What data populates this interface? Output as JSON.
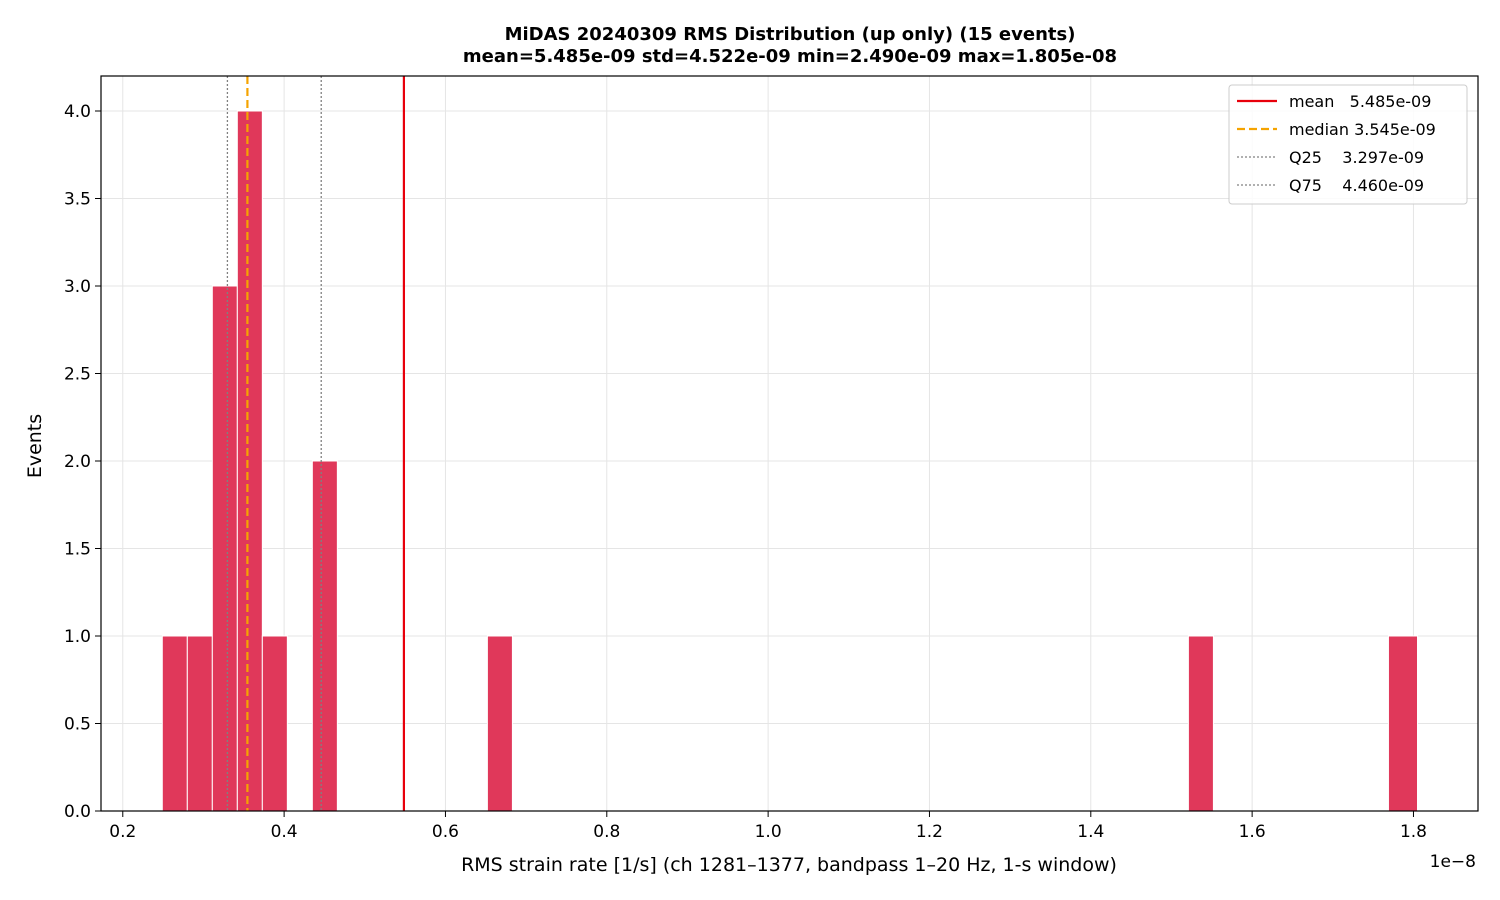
{
  "chart_data": {
    "type": "bar",
    "title": "MiDAS 20240309  RMS Distribution  (up only)  (15 events)",
    "subtitle": "mean=5.485e-09  std=4.522e-09  min=2.490e-09  max=1.805e-08",
    "xlabel": "RMS strain rate [1/s]  (ch 1281–1377, bandpass 1–20 Hz, 1-s window)",
    "ylabel": "Events",
    "x_offset_label": "1e−8",
    "x_scale": 1e-08,
    "xlim": [
      0.173,
      1.88
    ],
    "ylim": [
      0,
      4.2
    ],
    "grid": true,
    "bar_color": "#e0385a",
    "x_ticks": [
      0.2,
      0.4,
      0.6,
      0.8,
      1.0,
      1.2,
      1.4,
      1.6,
      1.8
    ],
    "y_ticks": [
      0.0,
      0.5,
      1.0,
      1.5,
      2.0,
      2.5,
      3.0,
      3.5,
      4.0
    ],
    "bins": [
      {
        "x0": 0.249,
        "x1": 0.28,
        "count": 1
      },
      {
        "x0": 0.28,
        "x1": 0.311,
        "count": 1
      },
      {
        "x0": 0.311,
        "x1": 0.342,
        "count": 3
      },
      {
        "x0": 0.342,
        "x1": 0.373,
        "count": 4
      },
      {
        "x0": 0.373,
        "x1": 0.404,
        "count": 1
      },
      {
        "x0": 0.435,
        "x1": 0.466,
        "count": 2
      },
      {
        "x0": 0.652,
        "x1": 0.683,
        "count": 1
      },
      {
        "x0": 1.521,
        "x1": 1.552,
        "count": 1
      },
      {
        "x0": 1.769,
        "x1": 1.805,
        "count": 1
      }
    ],
    "reference_lines": [
      {
        "key": "mean",
        "label": "mean   5.485e-09",
        "value": 0.5485,
        "color": "#e8000b",
        "style": "solid"
      },
      {
        "key": "median",
        "label": "median 3.545e-09",
        "value": 0.3545,
        "color": "#f5a300",
        "style": "dashed"
      },
      {
        "key": "q25",
        "label": "Q25    3.297e-09",
        "value": 0.3297,
        "color": "#808080",
        "style": "dotted"
      },
      {
        "key": "q75",
        "label": "Q75    4.460e-09",
        "value": 0.446,
        "color": "#808080",
        "style": "dotted"
      }
    ],
    "legend_position": "top-right"
  }
}
